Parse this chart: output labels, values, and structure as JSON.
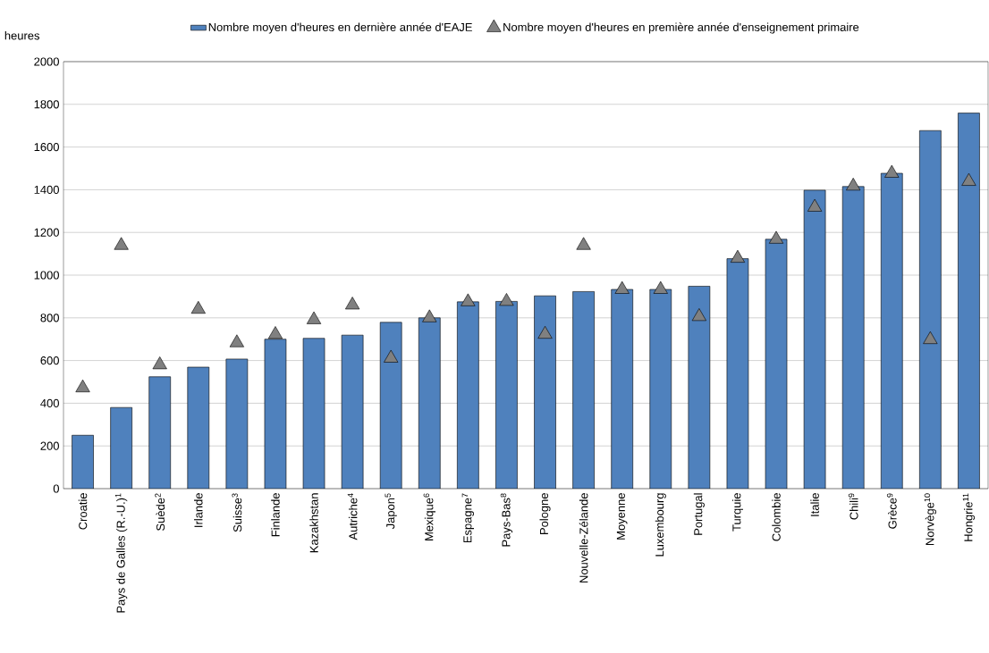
{
  "chart_data": {
    "type": "bar",
    "ylabel": "heures",
    "categories": [
      "Croatie",
      "Pays de Galles (R.-U.)$^{1}$",
      "Suède$^{2}$",
      "Irlande",
      "Suisse$^{3}$",
      "Finlande",
      "Kazakhstan",
      "Autriche$^{4}$",
      "Japon$^{5}$",
      "Mexique$^{6}$",
      "Espagne$^{7}$",
      "Pays-Bas$^{8}$",
      "Pologne",
      "Nouvelle-Zélande",
      "Moyenne",
      "Luxembourg",
      "Portugal",
      "Turquie",
      "Colombie",
      "Italie",
      "Chili$^{9}$",
      "Grèce$^{9}$",
      "Norvège$^{10}$",
      "Hongrie$^{11}$"
    ],
    "series": [
      {
        "name": "Nombre moyen d'heures en dernière année d'EAJE",
        "color": "#4f81bd",
        "values": [
          250,
          380,
          524,
          569,
          607,
          700,
          704,
          719,
          779,
          800,
          875,
          877,
          903,
          923,
          933,
          933,
          948,
          1077,
          1168,
          1398,
          1415,
          1477,
          1677,
          1759
        ]
      },
      {
        "name": "Nombre moyen d'heures en première année d'enseignement primaire",
        "type": "scatter",
        "marker": "triangle",
        "color": "#808080",
        "values": [
          472,
          1139,
          580,
          840,
          683,
          722,
          791,
          860,
          611,
          800,
          875,
          877,
          723,
          1139,
          933,
          933,
          806,
          1079,
          1168,
          1318,
          1417,
          1477,
          698,
          1439
        ]
      }
    ],
    "ylim": [
      0,
      2000
    ],
    "yticks": [
      0,
      200,
      400,
      600,
      800,
      1000,
      1200,
      1400,
      1600,
      1800,
      2000
    ],
    "grid": "y",
    "legend": "top"
  }
}
